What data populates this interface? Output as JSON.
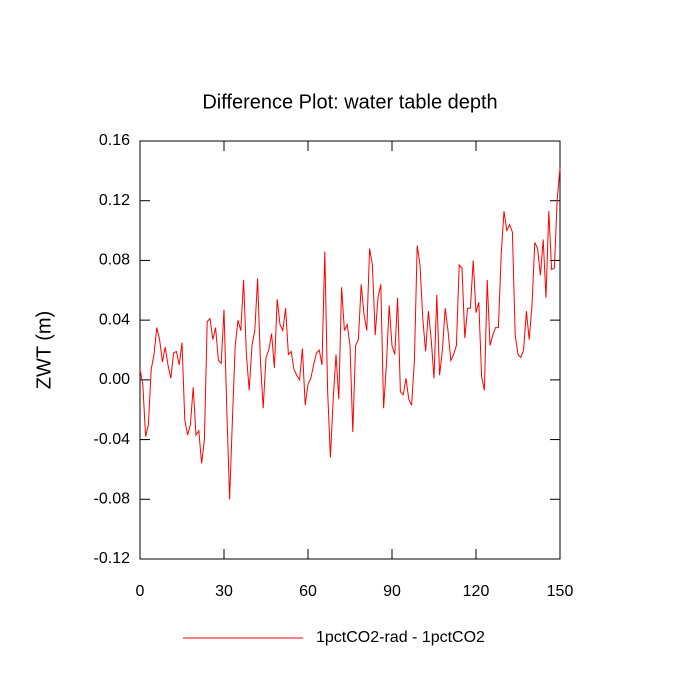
{
  "chart_data": {
    "type": "line",
    "title": "Difference Plot: water table depth",
    "ylabel": "ZWT  (m)",
    "x": [
      0,
      1,
      2,
      3,
      4,
      5,
      6,
      7,
      8,
      9,
      10,
      11,
      12,
      13,
      14,
      15,
      16,
      17,
      18,
      19,
      20,
      21,
      22,
      23,
      24,
      25,
      26,
      27,
      28,
      29,
      30,
      31,
      32,
      33,
      34,
      35,
      36,
      37,
      38,
      39,
      40,
      41,
      42,
      43,
      44,
      45,
      46,
      47,
      48,
      49,
      50,
      51,
      52,
      53,
      54,
      55,
      56,
      57,
      58,
      59,
      60,
      61,
      62,
      63,
      64,
      65,
      66,
      67,
      68,
      69,
      70,
      71,
      72,
      73,
      74,
      75,
      76,
      77,
      78,
      79,
      80,
      81,
      82,
      83,
      84,
      85,
      86,
      87,
      88,
      89,
      90,
      91,
      92,
      93,
      94,
      95,
      96,
      97,
      98,
      99,
      100,
      101,
      102,
      103,
      104,
      105,
      106,
      107,
      108,
      109,
      110,
      111,
      112,
      113,
      114,
      115,
      116,
      117,
      118,
      119,
      120,
      121,
      122,
      123,
      124,
      125,
      126,
      127,
      128,
      129,
      130,
      131,
      132,
      133,
      134,
      135,
      136,
      137,
      138,
      139,
      140,
      141,
      142,
      143,
      144,
      145,
      146,
      147,
      148,
      149,
      150
    ],
    "series": [
      {
        "name": "1pctCO2-rad - 1pctCO2",
        "color": "#ff0000",
        "values": [
          0.007,
          -0.003,
          -0.038,
          -0.03,
          0.007,
          0.017,
          0.035,
          0.027,
          0.012,
          0.022,
          0.01,
          0.001,
          0.018,
          0.019,
          0.01,
          0.025,
          -0.027,
          -0.037,
          -0.03,
          -0.005,
          -0.037,
          -0.034,
          -0.056,
          -0.04,
          0.039,
          0.041,
          0.027,
          0.035,
          0.013,
          0.011,
          0.047,
          -0.02,
          -0.08,
          -0.027,
          0.023,
          0.04,
          0.033,
          0.067,
          0.017,
          -0.007,
          0.023,
          0.033,
          0.068,
          0.013,
          -0.019,
          0.015,
          0.02,
          0.031,
          0.008,
          0.054,
          0.037,
          0.033,
          0.048,
          0.017,
          0.019,
          0.007,
          0.003,
          0.0,
          0.021,
          -0.017,
          -0.003,
          0.001,
          0.01,
          0.018,
          0.02,
          0.01,
          0.086,
          -0.007,
          -0.052,
          -0.013,
          0.017,
          -0.013,
          0.062,
          0.033,
          0.037,
          0.023,
          -0.035,
          0.023,
          0.027,
          0.064,
          0.044,
          0.033,
          0.088,
          0.077,
          0.03,
          0.055,
          0.064,
          -0.019,
          0.01,
          0.05,
          0.023,
          0.017,
          0.055,
          -0.008,
          -0.01,
          0.001,
          -0.013,
          -0.017,
          0.013,
          0.09,
          0.077,
          0.041,
          0.019,
          0.046,
          0.027,
          0.001,
          0.057,
          0.003,
          0.02,
          0.048,
          0.033,
          0.013,
          0.017,
          0.023,
          0.077,
          0.075,
          0.028,
          0.048,
          0.048,
          0.08,
          0.045,
          0.052,
          0.002,
          -0.007,
          0.067,
          0.023,
          0.03,
          0.035,
          0.035,
          0.084,
          0.113,
          0.1,
          0.104,
          0.099,
          0.03,
          0.017,
          0.015,
          0.02,
          0.046,
          0.027,
          0.05,
          0.092,
          0.088,
          0.07,
          0.094,
          0.055,
          0.113,
          0.074,
          0.075,
          0.121,
          0.142
        ]
      }
    ],
    "xlim": [
      0,
      150
    ],
    "xticks": [
      0,
      30,
      60,
      90,
      120,
      150
    ],
    "ylim": [
      -0.12,
      0.16
    ],
    "yticks": [
      -0.12,
      -0.08,
      -0.04,
      {
        "value": 0,
        "label": "0.00"
      },
      0.04,
      0.08,
      0.12,
      0.16
    ],
    "grid": false,
    "legend": "bottom"
  }
}
